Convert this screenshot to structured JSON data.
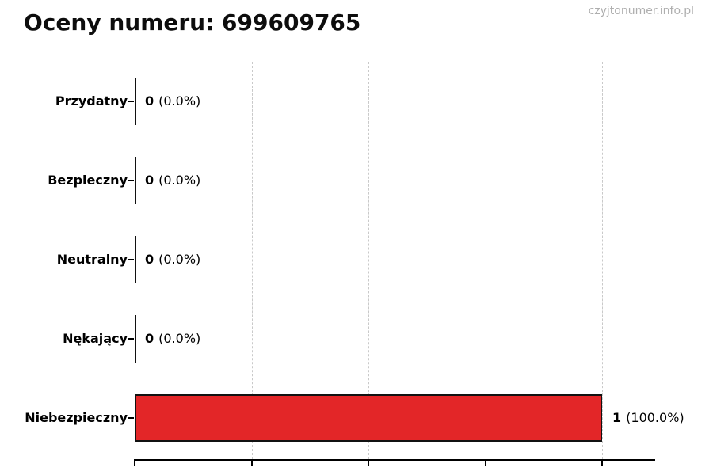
{
  "header": {
    "title": "Oceny numeru: 699609765",
    "watermark": "czyjtonumer.info.pl"
  },
  "chart_data": {
    "type": "bar",
    "orientation": "horizontal",
    "title": "Oceny numeru: 699609765",
    "categories": [
      "Przydatny",
      "Bezpieczny",
      "Neutralny",
      "Nękający",
      "Niebezpieczny"
    ],
    "values": [
      0,
      0,
      0,
      0,
      1
    ],
    "percentages": [
      0.0,
      0.0,
      0.0,
      0.0,
      100.0
    ],
    "count_labels": [
      "0",
      "0",
      "0",
      "0",
      "1"
    ],
    "pct_labels": [
      "(0.0%)",
      "(0.0%)",
      "(0.0%)",
      "(0.0%)",
      "(100.0%)"
    ],
    "xlim": [
      0,
      1.11
    ],
    "xticks": [
      0,
      0.25,
      0.5,
      0.75,
      1.0
    ],
    "xtick_labels_visible": false,
    "grid": "vertical-dashed",
    "legend": "none",
    "bar_color": "#e32628",
    "bar_edge_color": "#111111",
    "grid_color": "#c9c9c9",
    "title_color": "#0d0d0d",
    "watermark_color": "#aeaeae"
  }
}
